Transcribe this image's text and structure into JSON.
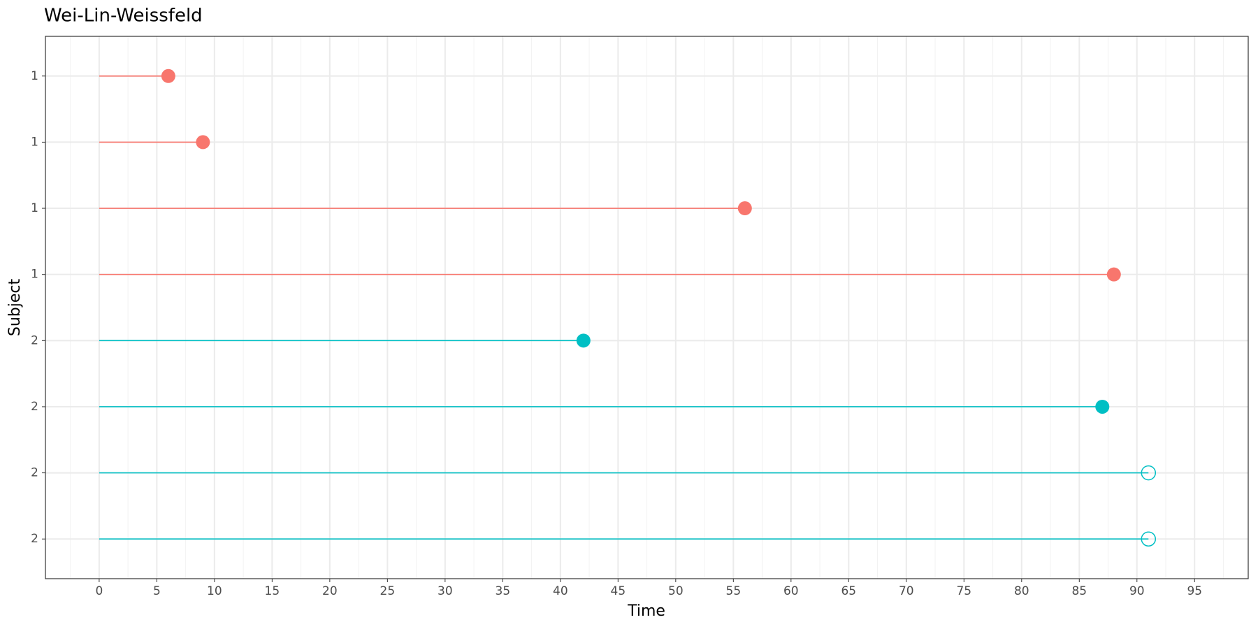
{
  "chart_data": {
    "type": "swimmer",
    "title": "Wei-Lin-Weissfeld",
    "x_label": "Time",
    "y_label": "Subject",
    "series": [
      {
        "name": "1",
        "color": "#F8766D",
        "starts": [
          0,
          0,
          0,
          0
        ],
        "values": [
          6,
          9,
          56,
          88
        ],
        "censored": [
          false,
          false,
          false,
          false
        ]
      },
      {
        "name": "2",
        "color": "#00BFC4",
        "starts": [
          0,
          0,
          0,
          0
        ],
        "values": [
          42,
          87,
          91,
          91
        ],
        "censored": [
          false,
          false,
          true,
          true
        ]
      }
    ],
    "xlim": [
      -4.66,
      99.65
    ],
    "xticks": [
      0,
      5,
      10,
      15,
      20,
      25,
      30,
      35,
      40,
      45,
      50,
      55,
      60,
      65,
      70,
      75,
      80,
      85,
      90,
      95
    ],
    "xminor": [
      -2.5,
      2.5,
      7.5,
      12.5,
      17.5,
      22.5,
      27.5,
      32.5,
      37.5,
      42.5,
      47.5,
      52.5,
      57.5,
      62.5,
      67.5,
      72.5,
      77.5,
      82.5,
      87.5,
      92.5,
      97.5
    ],
    "grid": true
  }
}
